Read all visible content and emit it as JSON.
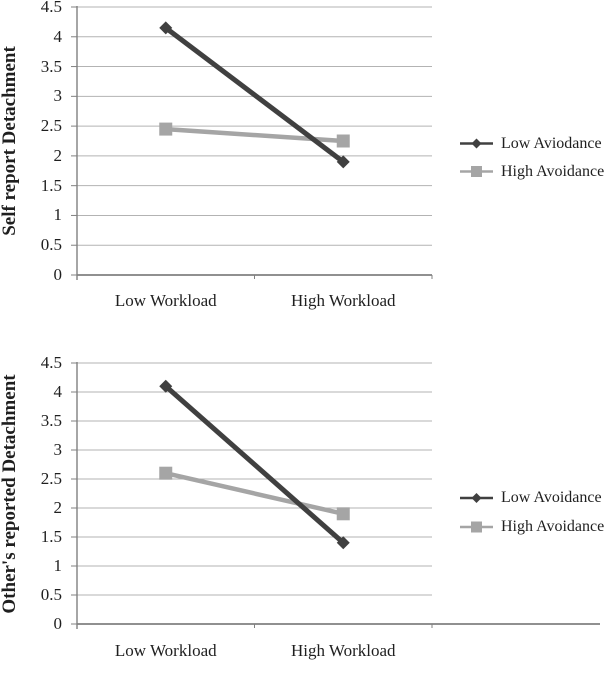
{
  "figure": {
    "background": "#ffffff",
    "text_color": "#1f1f1f",
    "axis_color": "#808080",
    "gridline_color": "#b3b3b3"
  },
  "chart_data": [
    {
      "type": "line",
      "title": "",
      "ylabel": "Self report Detachment",
      "xlabel": "",
      "categories": [
        "Low Workload",
        "High Workload"
      ],
      "ylim": [
        0,
        4.5
      ],
      "yticks": [
        0,
        0.5,
        1,
        1.5,
        2,
        2.5,
        3,
        3.5,
        4,
        4.5
      ],
      "grid": true,
      "legend_position": "right",
      "series": [
        {
          "name": "Low Aviodance",
          "marker": "diamond",
          "color": "#404040",
          "values": [
            4.15,
            1.9
          ]
        },
        {
          "name": "High Avoidance",
          "marker": "square",
          "color": "#a5a5a5",
          "values": [
            2.45,
            2.25
          ]
        }
      ]
    },
    {
      "type": "line",
      "title": "",
      "ylabel": "Other's reported Detachment",
      "xlabel": "",
      "categories": [
        "Low Workload",
        "High Workload"
      ],
      "ylim": [
        0,
        4.5
      ],
      "yticks": [
        0,
        0.5,
        1,
        1.5,
        2,
        2.5,
        3,
        3.5,
        4,
        4.5
      ],
      "grid": true,
      "legend_position": "right",
      "series": [
        {
          "name": "Low Avoidance",
          "marker": "diamond",
          "color": "#404040",
          "values": [
            4.1,
            1.4
          ]
        },
        {
          "name": "High Avoidance",
          "marker": "square",
          "color": "#a5a5a5",
          "values": [
            2.6,
            1.9
          ]
        }
      ]
    }
  ]
}
